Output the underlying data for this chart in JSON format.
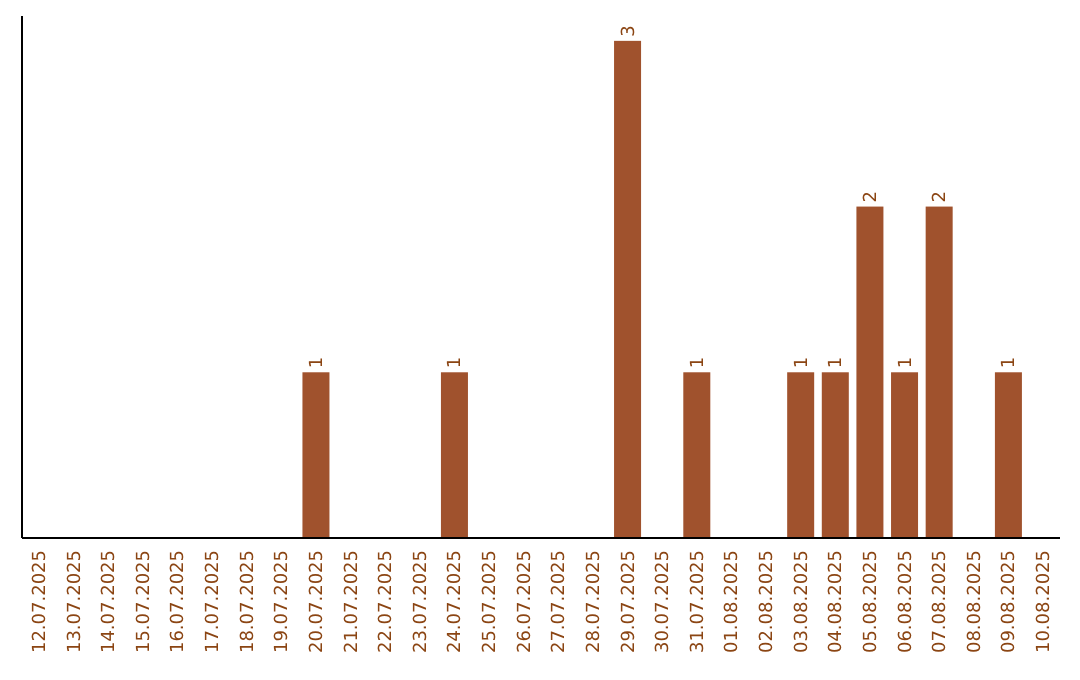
{
  "chart_data": {
    "type": "bar",
    "categories": [
      "12.07.2025",
      "13.07.2025",
      "14.07.2025",
      "15.07.2025",
      "16.07.2025",
      "17.07.2025",
      "18.07.2025",
      "19.07.2025",
      "20.07.2025",
      "21.07.2025",
      "22.07.2025",
      "23.07.2025",
      "24.07.2025",
      "25.07.2025",
      "26.07.2025",
      "27.07.2025",
      "28.07.2025",
      "29.07.2025",
      "30.07.2025",
      "31.07.2025",
      "01.08.2025",
      "02.08.2025",
      "03.08.2025",
      "04.08.2025",
      "05.08.2025",
      "06.08.2025",
      "07.08.2025",
      "08.08.2025",
      "09.08.2025",
      "10.08.2025"
    ],
    "values": [
      0,
      0,
      0,
      0,
      0,
      0,
      0,
      0,
      1,
      0,
      0,
      0,
      1,
      0,
      0,
      0,
      0,
      3,
      0,
      1,
      0,
      0,
      1,
      1,
      2,
      1,
      2,
      0,
      1,
      0
    ],
    "value_labels": [
      null,
      null,
      null,
      null,
      null,
      null,
      null,
      null,
      "1",
      null,
      null,
      null,
      "1",
      null,
      null,
      null,
      null,
      "3",
      null,
      "1",
      null,
      null,
      "1",
      "1",
      "2",
      "1",
      "2",
      null,
      "1",
      null
    ],
    "color": "#a0522d",
    "tick_labels": "x"
  }
}
